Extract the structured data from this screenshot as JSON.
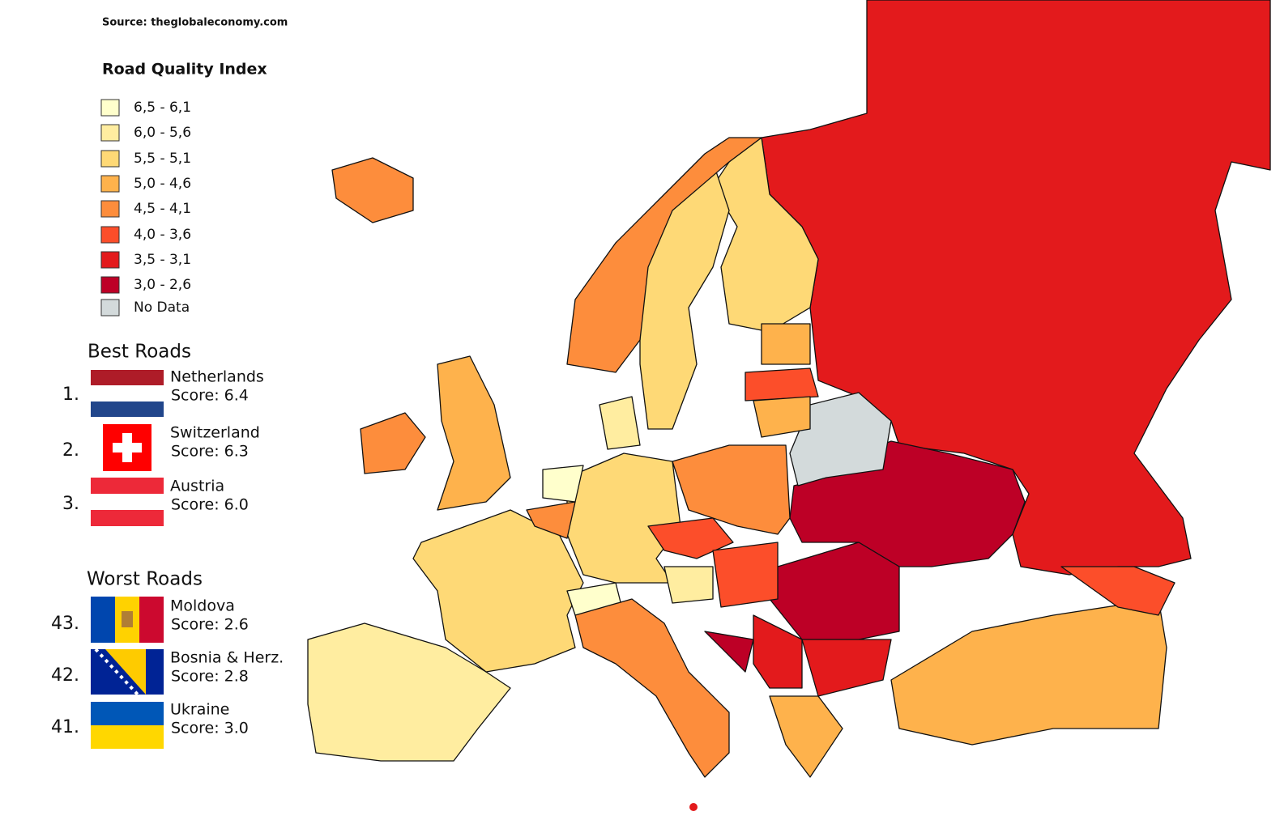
{
  "source": "Source: theglobaleconomy.com",
  "legend": {
    "title": "Road Quality Index",
    "items": [
      {
        "label": "6,5 - 6,1",
        "color": "#ffffcc"
      },
      {
        "label": "6,0 - 5,6",
        "color": "#ffeda0"
      },
      {
        "label": "5,5 - 5,1",
        "color": "#fed976"
      },
      {
        "label": "5,0 - 4,6",
        "color": "#feb24c"
      },
      {
        "label": "4,5 - 4,1",
        "color": "#fd8d3c"
      },
      {
        "label": "4,0 - 3,6",
        "color": "#fc4e2a"
      },
      {
        "label": "3,5 - 3,1",
        "color": "#e31a1c"
      },
      {
        "label": "3,0 - 2,6",
        "color": "#bd0026"
      },
      {
        "label": "No Data",
        "color": "#d3dadb"
      }
    ]
  },
  "best": {
    "title": "Best Roads",
    "entries": [
      {
        "rank": "1.",
        "name": "Netherlands",
        "score": "Score: 6.4"
      },
      {
        "rank": "2.",
        "name": "Switzerland",
        "score": "Score: 6.3"
      },
      {
        "rank": "3.",
        "name": "Austria",
        "score": "Score: 6.0"
      }
    ]
  },
  "worst": {
    "title": "Worst Roads",
    "entries": [
      {
        "rank": "43.",
        "name": "Moldova",
        "score": "Score: 2.6"
      },
      {
        "rank": "42.",
        "name": "Bosnia & Herz.",
        "score": "Score: 2.8"
      },
      {
        "rank": "41.",
        "name": "Ukraine",
        "score": "Score: 3.0"
      }
    ]
  }
}
